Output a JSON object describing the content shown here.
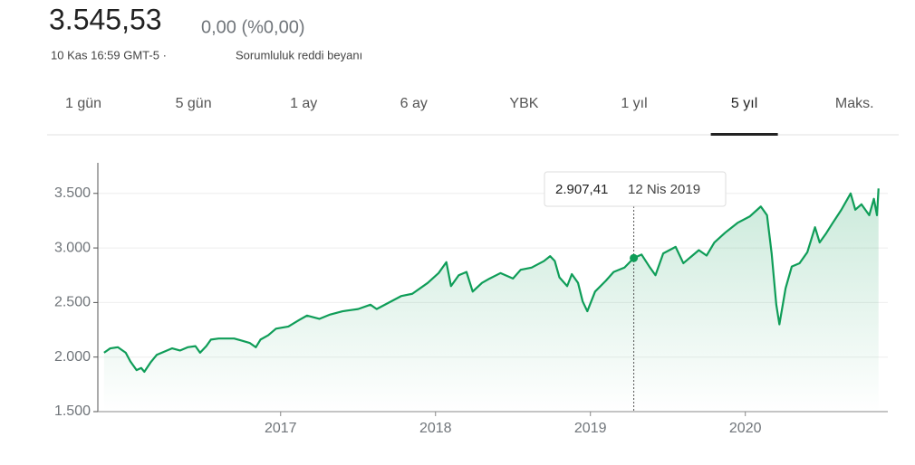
{
  "header": {
    "price": "3.545,53",
    "change": "0,00 (%0,00)",
    "timestamp": "10 Kas 16:59 GMT-5 ·",
    "disclaimer": "Sorumluluk reddi beyanı"
  },
  "tabs": [
    "1 gün",
    "5 gün",
    "1 ay",
    "6 ay",
    "YBK",
    "1 yıl",
    "5 yıl",
    "Maks."
  ],
  "selected_tab": 6,
  "chart_data": {
    "type": "line",
    "color": "#0f9d58",
    "x": [
      2015.86,
      2015.9,
      2015.95,
      2016.0,
      2016.03,
      2016.07,
      2016.1,
      2016.12,
      2016.16,
      2016.2,
      2016.25,
      2016.3,
      2016.35,
      2016.4,
      2016.45,
      2016.48,
      2016.52,
      2016.55,
      2016.6,
      2016.7,
      2016.75,
      2016.8,
      2016.84,
      2016.87,
      2016.92,
      2016.97,
      2017.05,
      2017.12,
      2017.17,
      2017.25,
      2017.32,
      2017.4,
      2017.45,
      2017.5,
      2017.58,
      2017.62,
      2017.7,
      2017.78,
      2017.85,
      2017.95,
      2018.02,
      2018.07,
      2018.1,
      2018.15,
      2018.2,
      2018.24,
      2018.3,
      2018.35,
      2018.42,
      2018.5,
      2018.55,
      2018.62,
      2018.7,
      2018.74,
      2018.77,
      2018.8,
      2018.85,
      2018.88,
      2018.92,
      2018.95,
      2018.98,
      2019.03,
      2019.1,
      2019.15,
      2019.22,
      2019.28,
      2019.33,
      2019.38,
      2019.42,
      2019.47,
      2019.55,
      2019.6,
      2019.65,
      2019.7,
      2019.75,
      2019.8,
      2019.87,
      2019.95,
      2020.03,
      2020.1,
      2020.14,
      2020.17,
      2020.2,
      2020.22,
      2020.26,
      2020.3,
      2020.35,
      2020.4,
      2020.45,
      2020.48,
      2020.52,
      2020.56,
      2020.62,
      2020.66,
      2020.68,
      2020.71,
      2020.75,
      2020.8,
      2020.83,
      2020.85,
      2020.86
    ],
    "values": [
      2040,
      2080,
      2090,
      2040,
      1960,
      1880,
      1900,
      1865,
      1950,
      2020,
      2050,
      2080,
      2060,
      2090,
      2100,
      2040,
      2100,
      2160,
      2170,
      2170,
      2150,
      2130,
      2090,
      2160,
      2200,
      2260,
      2280,
      2340,
      2380,
      2350,
      2390,
      2420,
      2430,
      2440,
      2480,
      2440,
      2500,
      2560,
      2580,
      2680,
      2770,
      2870,
      2650,
      2750,
      2780,
      2600,
      2680,
      2720,
      2770,
      2720,
      2800,
      2820,
      2880,
      2925,
      2880,
      2730,
      2650,
      2760,
      2680,
      2510,
      2420,
      2600,
      2700,
      2780,
      2820,
      2907.41,
      2940,
      2830,
      2750,
      2950,
      3010,
      2860,
      2920,
      2980,
      2930,
      3050,
      3140,
      3230,
      3290,
      3380,
      3300,
      2950,
      2480,
      2300,
      2630,
      2830,
      2860,
      2960,
      3190,
      3050,
      3130,
      3220,
      3350,
      3450,
      3500,
      3350,
      3400,
      3300,
      3450,
      3300,
      3545.53
    ],
    "xlim": [
      2015.82,
      2020.92
    ],
    "xticks": [
      2017,
      2018,
      2019,
      2020
    ],
    "ylim": [
      1500,
      3780
    ],
    "yticks": [
      {
        "value": 1500,
        "label": "1.500"
      },
      {
        "value": 2000,
        "label": "2.000"
      },
      {
        "value": 2500,
        "label": "2.500"
      },
      {
        "value": 3000,
        "label": "3.000"
      },
      {
        "value": 3500,
        "label": "3.500"
      }
    ],
    "grid": true,
    "tooltip": {
      "x": 2019.28,
      "value": 2907.41,
      "value_label": "2.907,41",
      "date_label": "12 Nis 2019"
    }
  }
}
